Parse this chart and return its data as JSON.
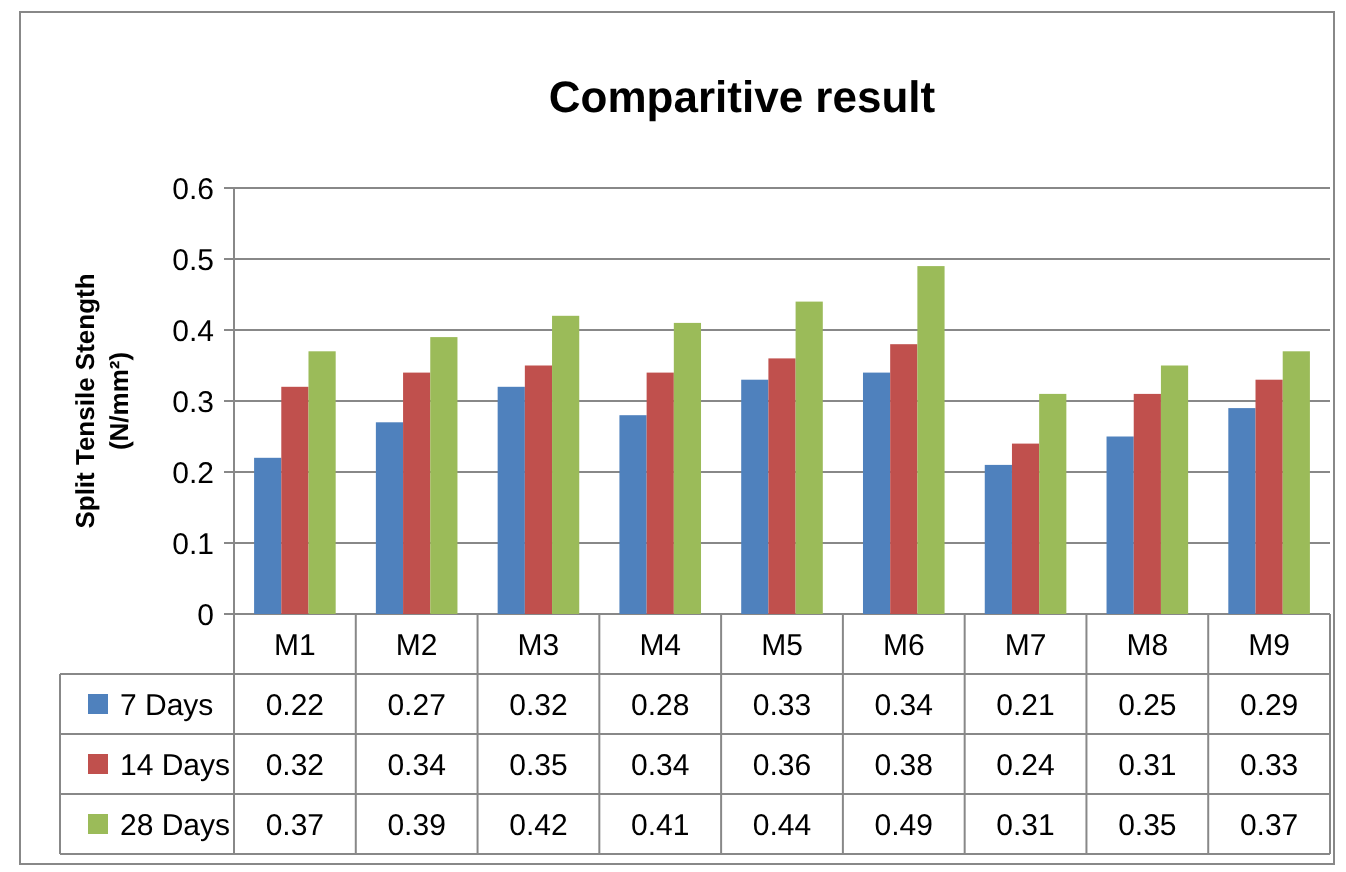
{
  "chart_data": {
    "type": "bar",
    "title": "Comparitive result",
    "ylabel": "Split Tensile Stength (N/mm²)",
    "categories": [
      "M1",
      "M2",
      "M3",
      "M4",
      "M5",
      "M6",
      "M7",
      "M8",
      "M9"
    ],
    "series": [
      {
        "name": "7 Days",
        "color": "#4f81bd",
        "values": [
          0.22,
          0.27,
          0.32,
          0.28,
          0.33,
          0.34,
          0.21,
          0.25,
          0.29
        ]
      },
      {
        "name": "14 Days",
        "color": "#c0504d",
        "values": [
          0.32,
          0.34,
          0.35,
          0.34,
          0.36,
          0.38,
          0.24,
          0.31,
          0.33
        ]
      },
      {
        "name": "28 Days",
        "color": "#9bbb59",
        "values": [
          0.37,
          0.39,
          0.42,
          0.41,
          0.44,
          0.49,
          0.31,
          0.35,
          0.37
        ]
      }
    ],
    "ylim": [
      0,
      0.6
    ],
    "yticks": [
      0,
      0.1,
      0.2,
      0.3,
      0.4,
      0.5,
      0.6
    ],
    "grid": "y",
    "legend": "bottom",
    "data_labels": true
  }
}
